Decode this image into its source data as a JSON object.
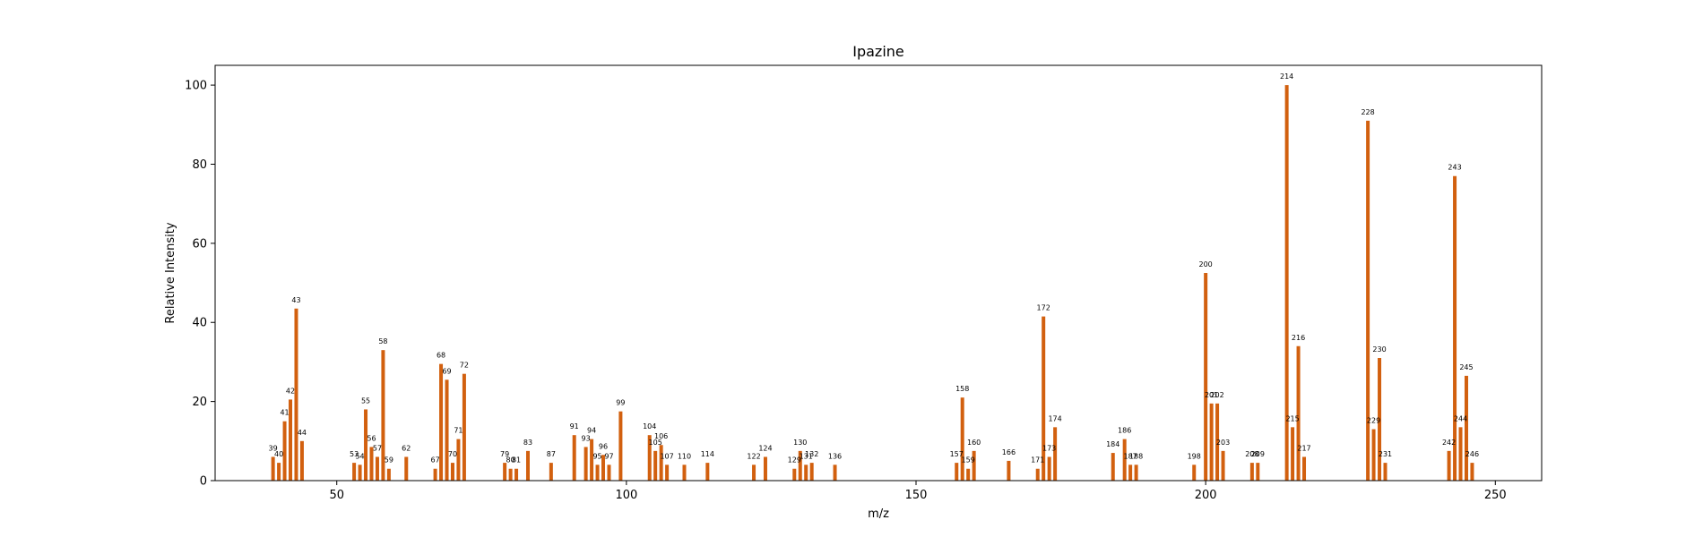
{
  "chart_data": {
    "type": "bar",
    "title": "Ipazine",
    "xlabel": "m/z",
    "ylabel": "Relative Intensity",
    "xlim": [
      29,
      258
    ],
    "ylim": [
      0,
      105
    ],
    "xticks": [
      50,
      100,
      150,
      200,
      250
    ],
    "yticks": [
      0,
      20,
      40,
      60,
      80,
      100
    ],
    "bar_color": "#d2600f",
    "grid": false,
    "peaks": [
      {
        "mz": 39,
        "intensity": 6
      },
      {
        "mz": 40,
        "intensity": 4.5
      },
      {
        "mz": 41,
        "intensity": 15
      },
      {
        "mz": 42,
        "intensity": 20.5
      },
      {
        "mz": 43,
        "intensity": 43.5
      },
      {
        "mz": 44,
        "intensity": 10
      },
      {
        "mz": 53,
        "intensity": 4.5
      },
      {
        "mz": 54,
        "intensity": 4
      },
      {
        "mz": 55,
        "intensity": 18
      },
      {
        "mz": 56,
        "intensity": 8.5
      },
      {
        "mz": 57,
        "intensity": 6
      },
      {
        "mz": 58,
        "intensity": 33
      },
      {
        "mz": 59,
        "intensity": 3
      },
      {
        "mz": 62,
        "intensity": 6
      },
      {
        "mz": 67,
        "intensity": 3
      },
      {
        "mz": 68,
        "intensity": 29.5
      },
      {
        "mz": 69,
        "intensity": 25.5
      },
      {
        "mz": 70,
        "intensity": 4.5
      },
      {
        "mz": 71,
        "intensity": 10.5
      },
      {
        "mz": 72,
        "intensity": 27
      },
      {
        "mz": 79,
        "intensity": 4.5
      },
      {
        "mz": 80,
        "intensity": 3
      },
      {
        "mz": 81,
        "intensity": 3
      },
      {
        "mz": 83,
        "intensity": 7.5
      },
      {
        "mz": 87,
        "intensity": 4.5
      },
      {
        "mz": 91,
        "intensity": 11.5
      },
      {
        "mz": 93,
        "intensity": 8.5
      },
      {
        "mz": 94,
        "intensity": 10.5
      },
      {
        "mz": 95,
        "intensity": 4
      },
      {
        "mz": 96,
        "intensity": 6.5
      },
      {
        "mz": 97,
        "intensity": 4
      },
      {
        "mz": 99,
        "intensity": 17.5
      },
      {
        "mz": 104,
        "intensity": 11.5
      },
      {
        "mz": 105,
        "intensity": 7.5
      },
      {
        "mz": 106,
        "intensity": 9
      },
      {
        "mz": 107,
        "intensity": 4
      },
      {
        "mz": 110,
        "intensity": 4
      },
      {
        "mz": 114,
        "intensity": 4.5
      },
      {
        "mz": 122,
        "intensity": 4
      },
      {
        "mz": 124,
        "intensity": 6
      },
      {
        "mz": 129,
        "intensity": 3
      },
      {
        "mz": 130,
        "intensity": 7.5
      },
      {
        "mz": 131,
        "intensity": 4
      },
      {
        "mz": 132,
        "intensity": 4.5
      },
      {
        "mz": 136,
        "intensity": 4
      },
      {
        "mz": 157,
        "intensity": 4.5
      },
      {
        "mz": 158,
        "intensity": 21
      },
      {
        "mz": 159,
        "intensity": 3
      },
      {
        "mz": 160,
        "intensity": 7.5
      },
      {
        "mz": 166,
        "intensity": 5
      },
      {
        "mz": 171,
        "intensity": 3
      },
      {
        "mz": 172,
        "intensity": 41.5
      },
      {
        "mz": 173,
        "intensity": 6
      },
      {
        "mz": 174,
        "intensity": 13.5
      },
      {
        "mz": 184,
        "intensity": 7
      },
      {
        "mz": 186,
        "intensity": 10.5
      },
      {
        "mz": 187,
        "intensity": 4
      },
      {
        "mz": 188,
        "intensity": 4
      },
      {
        "mz": 198,
        "intensity": 4
      },
      {
        "mz": 200,
        "intensity": 52.5
      },
      {
        "mz": 201,
        "intensity": 19.5
      },
      {
        "mz": 202,
        "intensity": 19.5
      },
      {
        "mz": 203,
        "intensity": 7.5
      },
      {
        "mz": 208,
        "intensity": 4.5
      },
      {
        "mz": 209,
        "intensity": 4.5
      },
      {
        "mz": 214,
        "intensity": 100
      },
      {
        "mz": 215,
        "intensity": 13.5
      },
      {
        "mz": 216,
        "intensity": 34
      },
      {
        "mz": 217,
        "intensity": 6
      },
      {
        "mz": 228,
        "intensity": 91
      },
      {
        "mz": 229,
        "intensity": 13
      },
      {
        "mz": 230,
        "intensity": 31
      },
      {
        "mz": 231,
        "intensity": 4.5
      },
      {
        "mz": 242,
        "intensity": 7.5
      },
      {
        "mz": 243,
        "intensity": 77
      },
      {
        "mz": 244,
        "intensity": 13.5
      },
      {
        "mz": 245,
        "intensity": 26.5
      },
      {
        "mz": 246,
        "intensity": 4.5
      }
    ]
  }
}
